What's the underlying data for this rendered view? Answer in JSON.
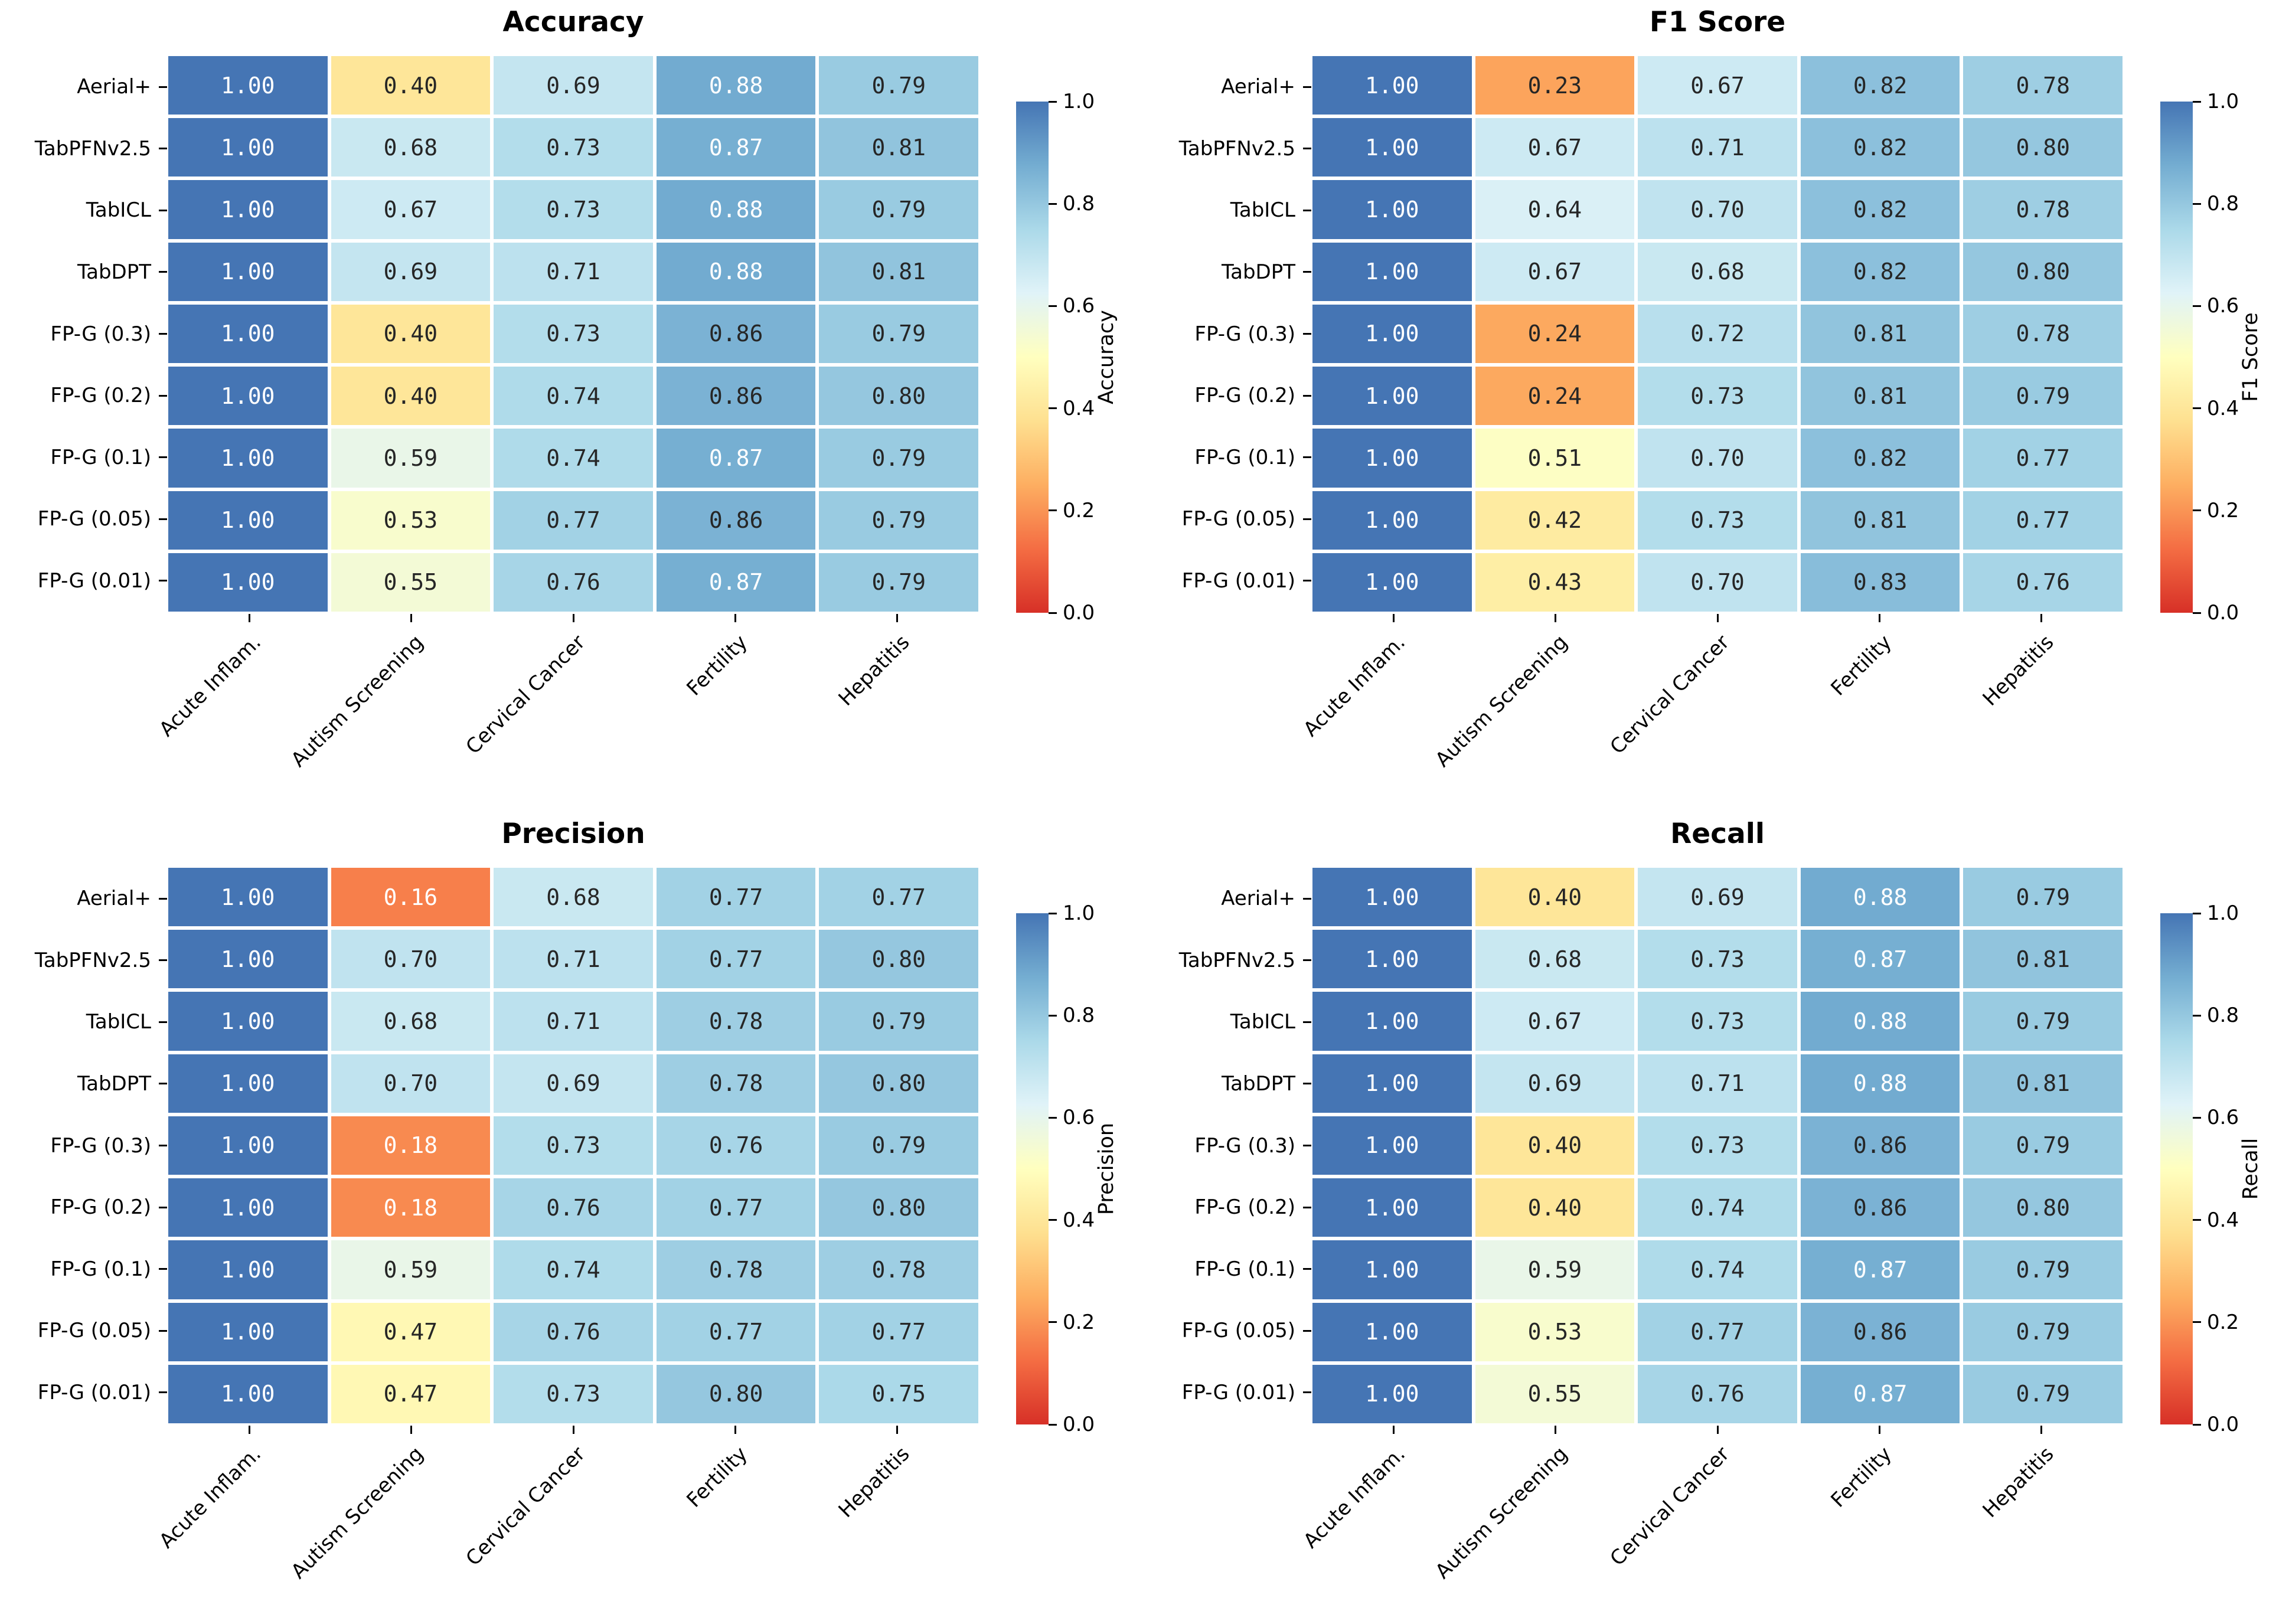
{
  "figure": {
    "background": "#ffffff",
    "layout": "2x2-heatmap-grid"
  },
  "colormap": {
    "name": "RdYlBu-9",
    "stops": [
      "#d73027",
      "#f46d43",
      "#fdae61",
      "#fee090",
      "#ffffbf",
      "#e0f3f8",
      "#abd9e9",
      "#74add1",
      "#4575b4"
    ],
    "vmin": 0,
    "vmax": 1,
    "dark_text": "#262626",
    "light_text": "#ffffff",
    "cell_gap_color": "#ffffff"
  },
  "chart_data": [
    {
      "type": "heatmap",
      "title": "Accuracy",
      "colorbar_label": "Accuracy",
      "colorbar_ticks": [
        "1.0",
        "0.8",
        "0.6",
        "0.4",
        "0.2",
        "0.0"
      ],
      "vmin": 0,
      "vmax": 1,
      "rows": [
        "Aerial+",
        "TabPFNv2.5",
        "TabICL",
        "TabDPT",
        "FP-G (0.3)",
        "FP-G (0.2)",
        "FP-G (0.1)",
        "FP-G (0.05)",
        "FP-G (0.01)"
      ],
      "columns": [
        "Acute Inflam.",
        "Autism Screening",
        "Cervical Cancer",
        "Fertility",
        "Hepatitis"
      ],
      "values": [
        [
          1.0,
          0.4,
          0.69,
          0.88,
          0.79
        ],
        [
          1.0,
          0.68,
          0.73,
          0.87,
          0.81
        ],
        [
          1.0,
          0.67,
          0.73,
          0.88,
          0.79
        ],
        [
          1.0,
          0.69,
          0.71,
          0.88,
          0.81
        ],
        [
          1.0,
          0.4,
          0.73,
          0.86,
          0.79
        ],
        [
          1.0,
          0.4,
          0.74,
          0.86,
          0.8
        ],
        [
          1.0,
          0.59,
          0.74,
          0.87,
          0.79
        ],
        [
          1.0,
          0.53,
          0.77,
          0.86,
          0.79
        ],
        [
          1.0,
          0.55,
          0.76,
          0.87,
          0.79
        ]
      ]
    },
    {
      "type": "heatmap",
      "title": "F1 Score",
      "colorbar_label": "F1 Score",
      "colorbar_ticks": [
        "1.0",
        "0.8",
        "0.6",
        "0.4",
        "0.2",
        "0.0"
      ],
      "vmin": 0,
      "vmax": 1,
      "rows": [
        "Aerial+",
        "TabPFNv2.5",
        "TabICL",
        "TabDPT",
        "FP-G (0.3)",
        "FP-G (0.2)",
        "FP-G (0.1)",
        "FP-G (0.05)",
        "FP-G (0.01)"
      ],
      "columns": [
        "Acute Inflam.",
        "Autism Screening",
        "Cervical Cancer",
        "Fertility",
        "Hepatitis"
      ],
      "values": [
        [
          1.0,
          0.23,
          0.67,
          0.82,
          0.78
        ],
        [
          1.0,
          0.67,
          0.71,
          0.82,
          0.8
        ],
        [
          1.0,
          0.64,
          0.7,
          0.82,
          0.78
        ],
        [
          1.0,
          0.67,
          0.68,
          0.82,
          0.8
        ],
        [
          1.0,
          0.24,
          0.72,
          0.81,
          0.78
        ],
        [
          1.0,
          0.24,
          0.73,
          0.81,
          0.79
        ],
        [
          1.0,
          0.51,
          0.7,
          0.82,
          0.77
        ],
        [
          1.0,
          0.42,
          0.73,
          0.81,
          0.77
        ],
        [
          1.0,
          0.43,
          0.7,
          0.83,
          0.76
        ]
      ]
    },
    {
      "type": "heatmap",
      "title": "Precision",
      "colorbar_label": "Precision",
      "colorbar_ticks": [
        "1.0",
        "0.8",
        "0.6",
        "0.4",
        "0.2",
        "0.0"
      ],
      "vmin": 0,
      "vmax": 1,
      "rows": [
        "Aerial+",
        "TabPFNv2.5",
        "TabICL",
        "TabDPT",
        "FP-G (0.3)",
        "FP-G (0.2)",
        "FP-G (0.1)",
        "FP-G (0.05)",
        "FP-G (0.01)"
      ],
      "columns": [
        "Acute Inflam.",
        "Autism Screening",
        "Cervical Cancer",
        "Fertility",
        "Hepatitis"
      ],
      "values": [
        [
          1.0,
          0.16,
          0.68,
          0.77,
          0.77
        ],
        [
          1.0,
          0.7,
          0.71,
          0.77,
          0.8
        ],
        [
          1.0,
          0.68,
          0.71,
          0.78,
          0.79
        ],
        [
          1.0,
          0.7,
          0.69,
          0.78,
          0.8
        ],
        [
          1.0,
          0.18,
          0.73,
          0.76,
          0.79
        ],
        [
          1.0,
          0.18,
          0.76,
          0.77,
          0.8
        ],
        [
          1.0,
          0.59,
          0.74,
          0.78,
          0.78
        ],
        [
          1.0,
          0.47,
          0.76,
          0.77,
          0.77
        ],
        [
          1.0,
          0.47,
          0.73,
          0.8,
          0.75
        ]
      ]
    },
    {
      "type": "heatmap",
      "title": "Recall",
      "colorbar_label": "Recall",
      "colorbar_ticks": [
        "1.0",
        "0.8",
        "0.6",
        "0.4",
        "0.2",
        "0.0"
      ],
      "vmin": 0,
      "vmax": 1,
      "rows": [
        "Aerial+",
        "TabPFNv2.5",
        "TabICL",
        "TabDPT",
        "FP-G (0.3)",
        "FP-G (0.2)",
        "FP-G (0.1)",
        "FP-G (0.05)",
        "FP-G (0.01)"
      ],
      "columns": [
        "Acute Inflam.",
        "Autism Screening",
        "Cervical Cancer",
        "Fertility",
        "Hepatitis"
      ],
      "values": [
        [
          1.0,
          0.4,
          0.69,
          0.88,
          0.79
        ],
        [
          1.0,
          0.68,
          0.73,
          0.87,
          0.81
        ],
        [
          1.0,
          0.67,
          0.73,
          0.88,
          0.79
        ],
        [
          1.0,
          0.69,
          0.71,
          0.88,
          0.81
        ],
        [
          1.0,
          0.4,
          0.73,
          0.86,
          0.79
        ],
        [
          1.0,
          0.4,
          0.74,
          0.86,
          0.8
        ],
        [
          1.0,
          0.59,
          0.74,
          0.87,
          0.79
        ],
        [
          1.0,
          0.53,
          0.77,
          0.86,
          0.79
        ],
        [
          1.0,
          0.55,
          0.76,
          0.87,
          0.79
        ]
      ]
    }
  ]
}
